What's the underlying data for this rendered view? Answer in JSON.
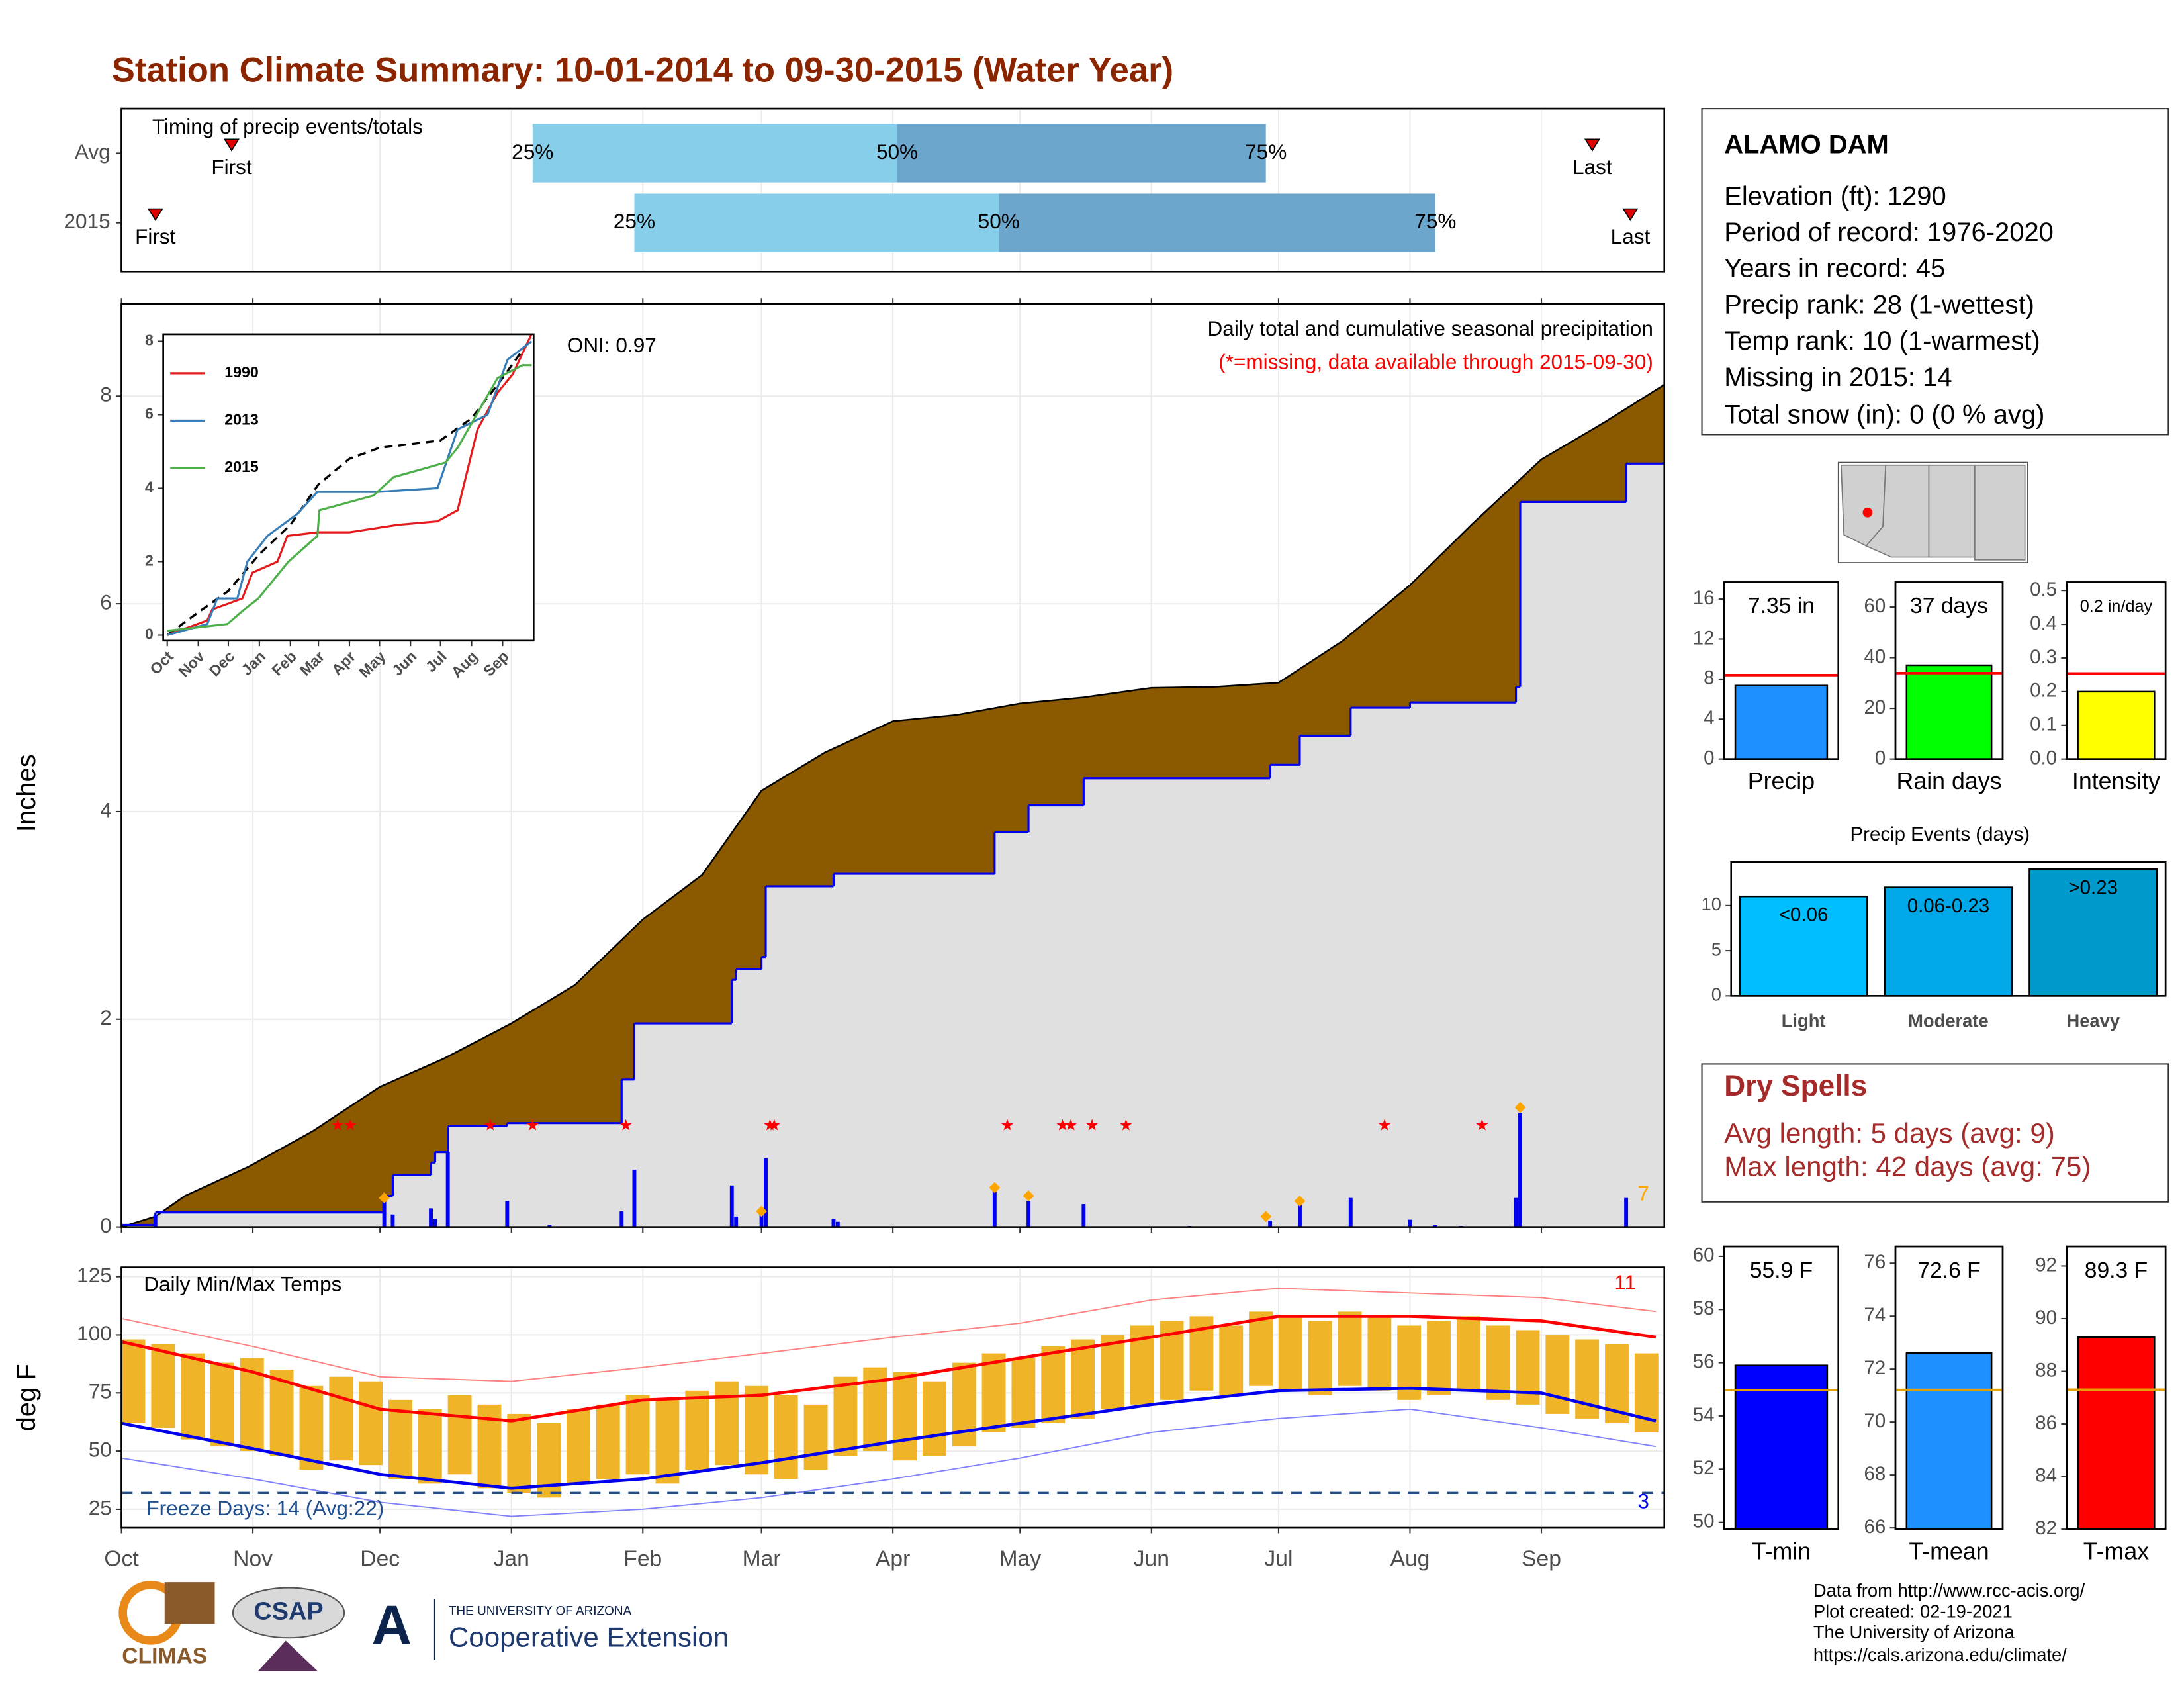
{
  "title": "Station Climate Summary: 10-01-2014 to 09-30-2015 (Water Year)",
  "station": {
    "name": "ALAMO DAM",
    "lines": [
      "Elevation (ft): 1290",
      "Period of record: 1976-2020",
      "Years in record: 45",
      "Precip rank: 28 (1-wettest)",
      "Temp rank: 10 (1-warmest)",
      "Missing in 2015: 14",
      "Total snow (in): 0 (0 % avg)"
    ]
  },
  "dry_spells": {
    "title": "Dry Spells",
    "lines": [
      "Avg length: 5 days (avg: 9)",
      "Max length: 42 days (avg: 75)"
    ]
  },
  "footer": {
    "logos": [
      "CLIMAS",
      "CSAP",
      "THE UNIVERSITY OF ARIZONA",
      "Cooperative Extension"
    ],
    "credits": [
      "Data from http://www.rcc-acis.org/",
      "Plot created: 02-19-2021",
      "The University of Arizona",
      "https://cals.arizona.edu/climate/"
    ]
  },
  "chart_data": [
    {
      "type": "timing",
      "title": "Timing of precip events/totals",
      "categories": [
        "Avg",
        "2015"
      ],
      "xlim": [
        0,
        364
      ],
      "xticks": [
        0,
        31,
        61,
        92,
        123,
        151,
        182,
        212,
        243,
        273,
        304,
        335
      ],
      "series": [
        {
          "name": "25%",
          "values": [
            97,
            121
          ]
        },
        {
          "name": "50%",
          "values": [
            183,
            207
          ]
        },
        {
          "name": "75%",
          "values": [
            270,
            310
          ]
        }
      ],
      "bar_colors": [
        "#87ceeb",
        "#6ca6cd"
      ],
      "first": [
        26,
        8
      ],
      "first_label": "First",
      "last": [
        347,
        356
      ],
      "last_label": "Last",
      "marker_color": "#e00000"
    },
    {
      "type": "area",
      "title": "Daily total and cumulative seasonal precipitation",
      "subtitle": "(*=missing, data available through 2015-09-30)",
      "annotation": "ONI: 0.97",
      "ylabel": "Inches",
      "xlim": [
        0,
        364
      ],
      "ylim": [
        0,
        8.89
      ],
      "yticks": [
        0,
        2,
        4,
        6,
        8
      ],
      "xticks": [
        0,
        31,
        61,
        92,
        123,
        151,
        182,
        212,
        243,
        273,
        304,
        335
      ],
      "grid": true,
      "average": {
        "color": "#8b5a00",
        "x": [
          0,
          8,
          15,
          30,
          45,
          61,
          76,
          92,
          107,
          123,
          137,
          151,
          166,
          182,
          197,
          212,
          227,
          243,
          258,
          273,
          288,
          304,
          319,
          335,
          350,
          364
        ],
        "values": [
          0,
          0.1,
          0.3,
          0.58,
          0.92,
          1.35,
          1.62,
          1.96,
          2.33,
          2.96,
          3.39,
          4.2,
          4.57,
          4.87,
          4.93,
          5.04,
          5.1,
          5.19,
          5.2,
          5.24,
          5.64,
          6.18,
          6.78,
          7.39,
          7.75,
          8.11
        ]
      },
      "cumulative": {
        "color": "#0000ee",
        "fill": "#e0e0e0",
        "x": [
          0,
          8,
          62,
          64,
          73,
          74,
          77,
          91,
          118,
          121,
          144,
          145,
          151,
          152,
          168,
          206,
          214,
          227,
          271,
          278,
          290,
          304,
          329,
          330,
          355,
          364
        ],
        "values": [
          0.02,
          0.14,
          0.3,
          0.5,
          0.62,
          0.72,
          0.97,
          1.0,
          1.42,
          1.96,
          2.38,
          2.48,
          2.6,
          3.28,
          3.4,
          3.8,
          4.06,
          4.32,
          4.45,
          4.73,
          5.0,
          5.05,
          5.2,
          6.98,
          7.35,
          7.35
        ]
      },
      "daily": {
        "color": "#0000ee",
        "x": [
          8,
          62,
          64,
          73,
          74,
          77,
          91,
          101,
          118,
          121,
          144,
          145,
          151,
          152,
          168,
          169,
          206,
          214,
          227,
          252,
          271,
          278,
          290,
          304,
          310,
          316,
          329,
          330,
          355
        ],
        "values": [
          0.12,
          0.3,
          0.12,
          0.18,
          0.08,
          0.72,
          0.25,
          0.02,
          0.15,
          0.55,
          0.4,
          0.1,
          0.12,
          0.66,
          0.08,
          0.05,
          0.38,
          0.25,
          0.22,
          0.01,
          0.06,
          0.22,
          0.28,
          0.07,
          0.02,
          0.01,
          0.28,
          1.1,
          0.28
        ]
      },
      "missing_x": [
        51,
        54,
        87,
        97,
        119,
        153,
        154,
        209,
        222,
        224,
        229,
        237,
        298,
        321
      ],
      "missing_color": "#ff0000",
      "events": {
        "color": "#ffa500",
        "count": 7,
        "x": [
          62,
          151,
          206,
          214,
          270,
          278,
          330
        ],
        "values": [
          0.28,
          0.15,
          0.38,
          0.3,
          0.1,
          0.25,
          1.15
        ]
      }
    },
    {
      "type": "line",
      "xlim": [
        -4,
        366
      ],
      "ylim": [
        -0.15,
        8.19
      ],
      "yticks": [
        0,
        2,
        4,
        6,
        8
      ],
      "xticks": [
        {
          "value": 0,
          "label": "Oct"
        },
        {
          "value": 31,
          "label": "Nov"
        },
        {
          "value": 61,
          "label": "Dec"
        },
        {
          "value": 92,
          "label": "Jan"
        },
        {
          "value": 123,
          "label": "Feb"
        },
        {
          "value": 151,
          "label": "Mar"
        },
        {
          "value": 182,
          "label": "Apr"
        },
        {
          "value": 212,
          "label": "May"
        },
        {
          "value": 243,
          "label": "Jun"
        },
        {
          "value": 273,
          "label": "Jul"
        },
        {
          "value": 304,
          "label": "Aug"
        },
        {
          "value": 335,
          "label": "Sep"
        }
      ],
      "average": {
        "color": "#000000",
        "x": [
          0,
          30,
          61,
          92,
          123,
          151,
          182,
          212,
          243,
          273,
          304,
          335,
          364
        ],
        "values": [
          0,
          0.6,
          1.2,
          2.2,
          3.0,
          4.1,
          4.8,
          5.1,
          5.2,
          5.3,
          5.9,
          7.0,
          8.1
        ]
      },
      "series": [
        {
          "name": "1990",
          "color": "#e41a1c",
          "x": [
            0,
            40,
            45,
            75,
            85,
            110,
            120,
            150,
            182,
            230,
            270,
            290,
            310,
            330,
            345,
            364
          ],
          "values": [
            0,
            0.4,
            0.7,
            1.0,
            1.7,
            2.0,
            2.7,
            2.8,
            2.8,
            3.0,
            3.1,
            3.4,
            5.6,
            6.6,
            7.1,
            8.2
          ]
        },
        {
          "name": "2013",
          "color": "#377eb8",
          "x": [
            0,
            40,
            50,
            70,
            80,
            100,
            130,
            150,
            182,
            210,
            270,
            290,
            320,
            340,
            364
          ],
          "values": [
            0,
            0.3,
            1.0,
            1.0,
            2.0,
            2.7,
            3.3,
            3.9,
            3.9,
            3.9,
            4.0,
            5.6,
            6.0,
            7.5,
            8.0
          ]
        },
        {
          "name": "2015",
          "color": "#4daf4a",
          "x": [
            0,
            60,
            77,
            91,
            121,
            150,
            152,
            206,
            226,
            278,
            290,
            330,
            355,
            364
          ],
          "values": [
            0.12,
            0.3,
            0.7,
            1.0,
            2.0,
            2.7,
            3.4,
            3.8,
            4.3,
            4.7,
            5.1,
            7.0,
            7.35,
            7.35
          ]
        }
      ]
    },
    {
      "type": "bar",
      "categories": [
        "Precip"
      ],
      "values": [
        7.35
      ],
      "value_labels": [
        "7.35 in"
      ],
      "reference": 8.4,
      "reference_color": "#ff0000",
      "color": "#1e90ff",
      "ylim": [
        0,
        17.7
      ],
      "yticks": [
        0,
        4,
        8,
        12,
        16
      ]
    },
    {
      "type": "bar",
      "categories": [
        "Rain days"
      ],
      "values": [
        37
      ],
      "value_labels": [
        "37 days"
      ],
      "reference": 33.9,
      "reference_color": "#ff0000",
      "color": "#00ff00",
      "ylim": [
        0,
        69.8
      ],
      "yticks": [
        0,
        20,
        40,
        60
      ]
    },
    {
      "type": "bar",
      "categories": [
        "Intensity"
      ],
      "values": [
        0.2
      ],
      "value_labels": [
        "0.2 in/day"
      ],
      "reference": 0.254,
      "reference_color": "#ff0000",
      "color": "#ffff00",
      "ylim": [
        0,
        0.525
      ],
      "yticks": [
        {
          "value": 0,
          "label": "0.0"
        },
        0.1,
        0.2,
        0.3,
        0.4,
        0.5
      ]
    },
    {
      "type": "bar",
      "title": "Precip Events (days)",
      "categories": [
        "Light",
        "Moderate",
        "Heavy"
      ],
      "values": [
        11,
        12,
        14
      ],
      "bar_labels": [
        "<0.06",
        "0.06-0.23",
        ">0.23"
      ],
      "colors": [
        "#00bfff",
        "#00a8e8",
        "#0099cc"
      ],
      "ylim": [
        0,
        14.8
      ],
      "yticks": [
        0,
        5,
        10
      ]
    },
    {
      "type": "range",
      "title": "Daily Min/Max Temps",
      "ylabel": "deg F",
      "xlim": [
        0,
        364
      ],
      "ylim": [
        17,
        129
      ],
      "yticks": [
        25,
        50,
        75,
        100,
        125
      ],
      "grid": true,
      "xticks": [
        {
          "value": 0,
          "label": "Oct"
        },
        {
          "value": 31,
          "label": "Nov"
        },
        {
          "value": 61,
          "label": "Dec"
        },
        {
          "value": 92,
          "label": "Jan"
        },
        {
          "value": 123,
          "label": "Feb"
        },
        {
          "value": 151,
          "label": "Mar"
        },
        {
          "value": 182,
          "label": "Apr"
        },
        {
          "value": 212,
          "label": "May"
        },
        {
          "value": 243,
          "label": "Jun"
        },
        {
          "value": 273,
          "label": "Jul"
        },
        {
          "value": 304,
          "label": "Aug"
        },
        {
          "value": 335,
          "label": "Sep"
        }
      ],
      "bar_color": "#f0b429",
      "x": [
        0,
        7,
        14,
        21,
        28,
        35,
        42,
        49,
        56,
        63,
        70,
        77,
        84,
        91,
        98,
        105,
        112,
        119,
        126,
        133,
        140,
        147,
        154,
        161,
        168,
        175,
        182,
        189,
        196,
        203,
        210,
        217,
        224,
        231,
        238,
        245,
        252,
        259,
        266,
        273,
        280,
        287,
        294,
        301,
        308,
        315,
        322,
        329,
        336,
        343,
        350,
        357
      ],
      "tmax": [
        98,
        96,
        92,
        88,
        90,
        85,
        78,
        82,
        80,
        72,
        68,
        74,
        70,
        66,
        62,
        68,
        70,
        74,
        72,
        76,
        80,
        78,
        74,
        70,
        82,
        86,
        84,
        80,
        88,
        92,
        90,
        95,
        98,
        100,
        104,
        106,
        108,
        104,
        110,
        108,
        106,
        110,
        108,
        104,
        106,
        108,
        104,
        102,
        100,
        98,
        96,
        92
      ],
      "tmin": [
        62,
        60,
        55,
        52,
        50,
        48,
        42,
        46,
        44,
        38,
        36,
        40,
        34,
        32,
        30,
        36,
        38,
        40,
        36,
        42,
        44,
        40,
        38,
        42,
        48,
        50,
        46,
        48,
        52,
        58,
        60,
        62,
        64,
        68,
        70,
        72,
        76,
        74,
        78,
        76,
        74,
        78,
        76,
        72,
        74,
        76,
        72,
        70,
        66,
        64,
        62,
        58
      ],
      "avg_max": {
        "color": "#ff0000",
        "x": [
          0,
          31,
          61,
          92,
          123,
          151,
          182,
          212,
          243,
          273,
          304,
          335,
          362
        ],
        "values": [
          97,
          84,
          68,
          63,
          72,
          74,
          81,
          90,
          99,
          108,
          108,
          106,
          99
        ]
      },
      "avg_min": {
        "color": "#0000ee",
        "x": [
          0,
          31,
          61,
          92,
          123,
          151,
          182,
          212,
          243,
          273,
          304,
          335,
          362
        ],
        "values": [
          62,
          51,
          40,
          34,
          38,
          45,
          54,
          62,
          70,
          76,
          77,
          75,
          63
        ]
      },
      "record_max": {
        "color": "#ff8080",
        "x": [
          0,
          31,
          61,
          92,
          123,
          151,
          182,
          212,
          243,
          273,
          304,
          335,
          362
        ],
        "values": [
          107,
          95,
          82,
          80,
          86,
          92,
          99,
          105,
          115,
          120,
          118,
          116,
          110
        ]
      },
      "record_min": {
        "color": "#8080ff",
        "x": [
          0,
          31,
          61,
          92,
          123,
          151,
          182,
          212,
          243,
          273,
          304,
          335,
          362
        ],
        "values": [
          47,
          38,
          28,
          22,
          25,
          30,
          38,
          47,
          58,
          64,
          68,
          60,
          52
        ]
      },
      "freeze": {
        "value": 32,
        "label": "Freeze Days: 14 (Avg:22)",
        "color": "#1f4e8c"
      },
      "record_high_count": 11,
      "record_low_count": 3
    },
    {
      "type": "bar",
      "categories": [
        "T-min"
      ],
      "values": [
        55.9
      ],
      "value_labels": [
        "55.9 F"
      ],
      "reference": 54.97,
      "reference_color": "#e69f00",
      "color": "#0000ff",
      "ylim": [
        49.74,
        60.37
      ],
      "yticks": [
        50,
        52,
        54,
        56,
        58,
        60
      ]
    },
    {
      "type": "bar",
      "categories": [
        "T-mean"
      ],
      "values": [
        72.6
      ],
      "value_labels": [
        "72.6 F"
      ],
      "reference": 71.21,
      "reference_color": "#e69f00",
      "color": "#1e90ff",
      "ylim": [
        65.95,
        76.63
      ],
      "yticks": [
        66,
        68,
        70,
        72,
        74,
        76
      ]
    },
    {
      "type": "bar",
      "categories": [
        "T-max"
      ],
      "values": [
        89.3
      ],
      "value_labels": [
        "89.3 F"
      ],
      "reference": 87.3,
      "reference_color": "#e69f00",
      "color": "#ff0000",
      "ylim": [
        82,
        92.74
      ],
      "yticks": [
        82,
        84,
        86,
        88,
        90,
        92
      ]
    }
  ]
}
